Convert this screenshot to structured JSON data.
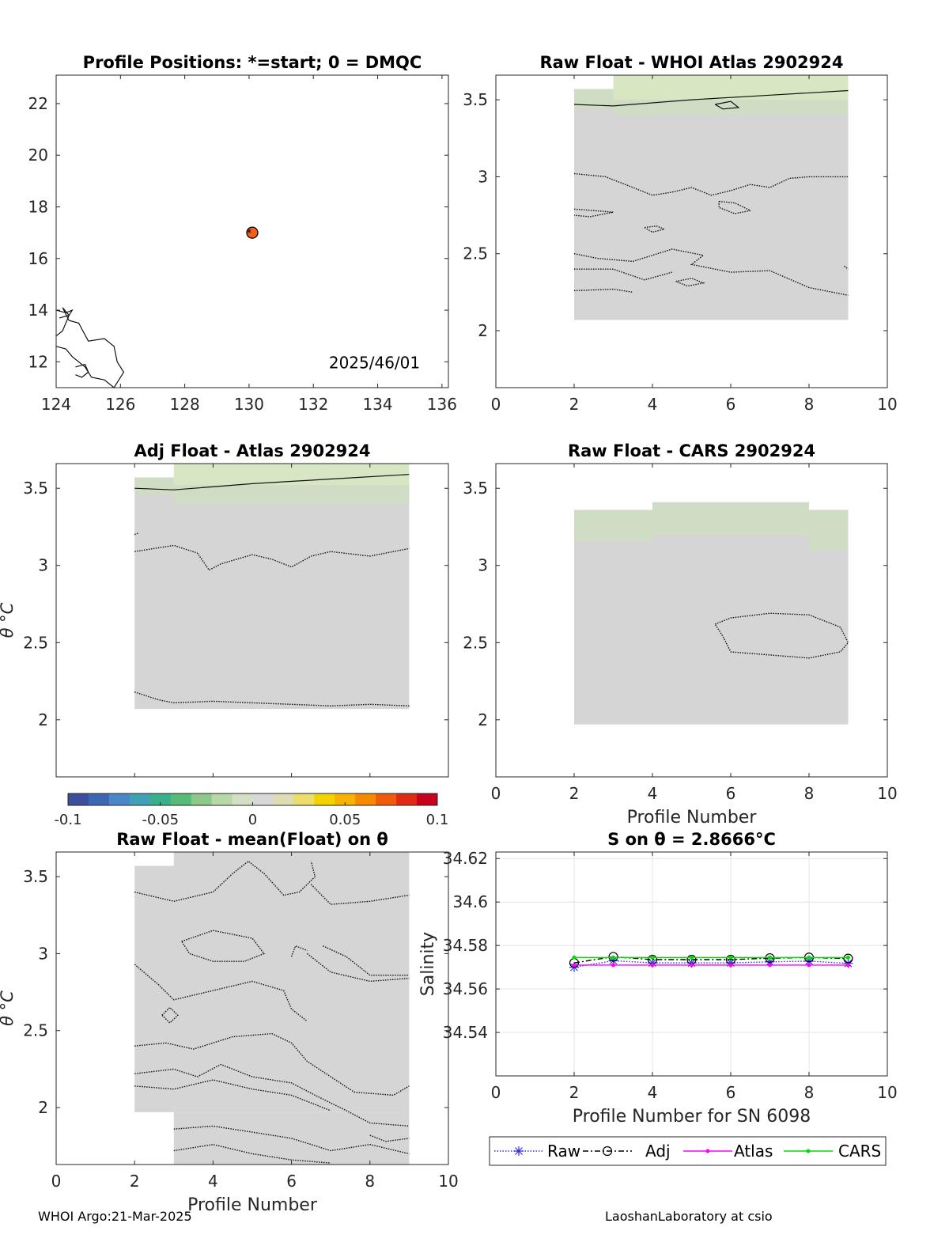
{
  "colors": {
    "anomaly_gray": "#d5d5d5",
    "anomaly_green": "#cfddc4",
    "anomaly_lightgreen": "#d7e6c3",
    "raw": "#3333dd",
    "adj": "#000000",
    "atlas": "#ff00ff",
    "cars": "#00dd00",
    "float_marker": "#f06020"
  },
  "chart_data": [
    {
      "id": "positions",
      "type": "scatter",
      "title": "Profile Positions: *=start; 0 = DMQC",
      "annotation": "2025/46/01",
      "xlim": [
        124,
        136.2
      ],
      "ylim": [
        11,
        23.1
      ],
      "xticks": [
        124,
        126,
        128,
        130,
        132,
        134,
        136
      ],
      "yticks": [
        12,
        14,
        16,
        18,
        20,
        22
      ],
      "points": [
        {
          "x": 130.1,
          "y": 17.0
        }
      ]
    },
    {
      "id": "raw_atlas",
      "type": "heatmap",
      "title": "Raw Float - WHOI Atlas  2902924",
      "xlim": [
        0,
        10
      ],
      "ylim": [
        1.63,
        3.66
      ],
      "xticks": [
        0,
        2,
        4,
        6,
        8,
        10
      ],
      "yticks": [
        2,
        2.5,
        3,
        3.5
      ],
      "xlabel": "",
      "ylabel": ""
    },
    {
      "id": "adj_atlas",
      "type": "heatmap",
      "title": "Adj Float - Atlas  2902924",
      "xlim": [
        0,
        10
      ],
      "ylim": [
        1.63,
        3.66
      ],
      "yticks": [
        2,
        2.5,
        3,
        3.5
      ],
      "xlabel": "",
      "ylabel": "θ °C"
    },
    {
      "id": "raw_cars",
      "type": "heatmap",
      "title": "Raw Float - CARS  2902924",
      "xlim": [
        0,
        10
      ],
      "ylim": [
        1.63,
        3.66
      ],
      "xticks": [
        0,
        2,
        4,
        6,
        8,
        10
      ],
      "yticks": [
        2,
        2.5,
        3,
        3.5
      ],
      "xlabel": "Profile Number",
      "ylabel": ""
    },
    {
      "id": "colorbar",
      "type": "heatmap",
      "ticks": [
        "-0.1",
        "-0.05",
        "0",
        "0.05",
        "0.1"
      ],
      "range": [
        -0.1,
        0.1
      ]
    },
    {
      "id": "raw_mean",
      "type": "heatmap",
      "title": "Raw Float - mean(Float) on θ",
      "xlim": [
        0,
        10
      ],
      "ylim": [
        1.63,
        3.66
      ],
      "xticks": [
        0,
        2,
        4,
        6,
        8,
        10
      ],
      "yticks": [
        2,
        2.5,
        3,
        3.5
      ],
      "xlabel": "Profile Number",
      "ylabel": "θ °C"
    },
    {
      "id": "salinity",
      "type": "line",
      "title": "S on θ = 2.8666°C",
      "xlabel": "Profile Number for SN 6098",
      "ylabel": "Salinity",
      "xlim": [
        0,
        10
      ],
      "ylim": [
        34.52,
        34.623
      ],
      "xticks": [
        0,
        2,
        4,
        6,
        8,
        10
      ],
      "yticks": [
        34.54,
        34.56,
        34.58,
        34.6,
        34.62
      ],
      "ytick_labels": [
        "34.54",
        "34.56",
        "34.58",
        "34.6",
        "34.62"
      ],
      "grid": true,
      "legend_position": "bottom-outside",
      "x": [
        2,
        3,
        4,
        5,
        6,
        7,
        8,
        9
      ],
      "series": [
        {
          "name": "Raw",
          "values": [
            34.57,
            34.573,
            34.572,
            34.572,
            34.572,
            34.5725,
            34.5728,
            34.5718
          ]
        },
        {
          "name": "Adj",
          "values": [
            34.572,
            34.5748,
            34.5735,
            34.5735,
            34.5735,
            34.5742,
            34.5745,
            34.574
          ]
        },
        {
          "name": "Atlas",
          "values": [
            34.571,
            34.571,
            34.571,
            34.571,
            34.571,
            34.571,
            34.571,
            34.571
          ]
        },
        {
          "name": "CARS",
          "values": [
            34.5745,
            34.5745,
            34.5745,
            34.5745,
            34.5745,
            34.5745,
            34.5745,
            34.5745
          ]
        }
      ]
    }
  ],
  "footer": {
    "left": "WHOI Argo:21-Mar-2025",
    "right": "LaoshanLaboratory at csio"
  }
}
